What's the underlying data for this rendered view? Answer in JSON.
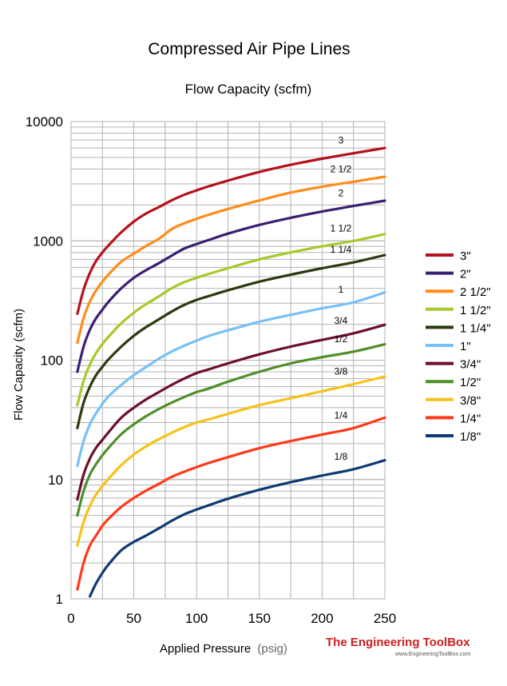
{
  "chart_data": {
    "type": "line",
    "title": "Compressed Air Pipe Lines",
    "subtitle": "Flow Capacity (scfm)",
    "xlabel": "Applied Pressure",
    "xlabel_unit": "(psig)",
    "ylabel": "Flow Capacity (scfm)",
    "xlim": [
      0,
      250
    ],
    "ylim": [
      1,
      10000
    ],
    "yscale": "log",
    "grid": true,
    "legend_position": "right",
    "x_ticks": [
      "0",
      "50",
      "100",
      "150",
      "200",
      "250"
    ],
    "y_ticks": [
      "1",
      "10",
      "100",
      "1000",
      "10000"
    ],
    "x": [
      5,
      10,
      15,
      20,
      25,
      30,
      40,
      50,
      60,
      70,
      80,
      90,
      100,
      110,
      125,
      150,
      175,
      200,
      225,
      250
    ],
    "series": [
      {
        "name": "3\"",
        "label": "3",
        "color": "#b5121b",
        "values": [
          245,
          390,
          540,
          680,
          800,
          920,
          1180,
          1450,
          1700,
          1920,
          2180,
          2430,
          2650,
          2870,
          3200,
          3780,
          4340,
          4880,
          5420,
          6000
        ]
      },
      {
        "name": "2\"",
        "label": "2",
        "color": "#3b1f73",
        "values": [
          80,
          130,
          180,
          225,
          265,
          310,
          400,
          490,
          570,
          650,
          750,
          860,
          940,
          1020,
          1150,
          1360,
          1560,
          1760,
          1960,
          2170
        ]
      },
      {
        "name": "2 1/2\"",
        "label": "2 1/2",
        "color": "#ff8c1a",
        "values": [
          140,
          225,
          310,
          385,
          455,
          525,
          670,
          780,
          910,
          1040,
          1250,
          1400,
          1530,
          1660,
          1850,
          2180,
          2540,
          2840,
          3130,
          3450
        ]
      },
      {
        "name": "1 1/2\"",
        "label": "1 1/2",
        "color": "#a6c92b",
        "values": [
          42,
          67,
          92,
          115,
          137,
          158,
          204,
          250,
          296,
          342,
          400,
          450,
          490,
          530,
          590,
          700,
          800,
          900,
          1000,
          1140
        ]
      },
      {
        "name": "1 1/4\"",
        "label": "1 1/4",
        "color": "#2b3a0c",
        "values": [
          27,
          44,
          60,
          75,
          88,
          102,
          130,
          160,
          190,
          220,
          255,
          290,
          320,
          345,
          385,
          455,
          520,
          590,
          660,
          760
        ]
      },
      {
        "name": "1\"",
        "label": "1",
        "color": "#78c0f5",
        "values": [
          13,
          21,
          29,
          36,
          43,
          50,
          62,
          75,
          88,
          103,
          118,
          132,
          146,
          160,
          178,
          210,
          240,
          272,
          305,
          370
        ]
      },
      {
        "name": "3/4\"",
        "label": "3/4",
        "color": "#6b0f2a",
        "values": [
          6.8,
          11,
          15,
          18.5,
          21.5,
          25,
          33,
          40,
          47,
          54,
          62,
          70,
          78,
          84,
          94,
          112,
          130,
          148,
          168,
          198
        ]
      },
      {
        "name": "1/2\"",
        "label": "1/2",
        "color": "#4e8f2a",
        "values": [
          5,
          8,
          11,
          13.5,
          16,
          18.5,
          24,
          29,
          34,
          39,
          44,
          49,
          54,
          58,
          66,
          80,
          94,
          106,
          118,
          136
        ]
      },
      {
        "name": "3/8\"",
        "label": "3/8",
        "color": "#f5c21b",
        "values": [
          2.8,
          4.4,
          6,
          7.5,
          8.8,
          10.2,
          13.2,
          16.2,
          19,
          21.8,
          24.6,
          27.4,
          30,
          32,
          35.5,
          42,
          48,
          55,
          63,
          73
        ]
      },
      {
        "name": "1/4\"",
        "label": "1/4",
        "color": "#ff3a1a",
        "values": [
          1.2,
          2,
          2.8,
          3.4,
          4.1,
          4.7,
          5.9,
          7,
          8.1,
          9.2,
          10.5,
          11.6,
          12.7,
          13.8,
          15.4,
          18.3,
          21,
          23.8,
          27,
          33
        ]
      },
      {
        "name": "1/8\"",
        "label": "1/8",
        "color": "#0f3a73",
        "values": [
          null,
          null,
          1.05,
          1.35,
          1.65,
          1.95,
          2.55,
          3.0,
          3.4,
          3.9,
          4.5,
          5.1,
          5.6,
          6.1,
          6.9,
          8.2,
          9.5,
          10.8,
          12.2,
          14.5
        ]
      }
    ],
    "legend_order": [
      "3\"",
      "2\"",
      "2 1/2\"",
      "1 1/2\"",
      "1 1/4\"",
      "1\"",
      "3/4\"",
      "1/2\"",
      "3/8\"",
      "1/4\"",
      "1/8\""
    ]
  },
  "branding": {
    "name": "The Engineering ToolBox",
    "url": "www.EngineeringToolBox.com"
  }
}
